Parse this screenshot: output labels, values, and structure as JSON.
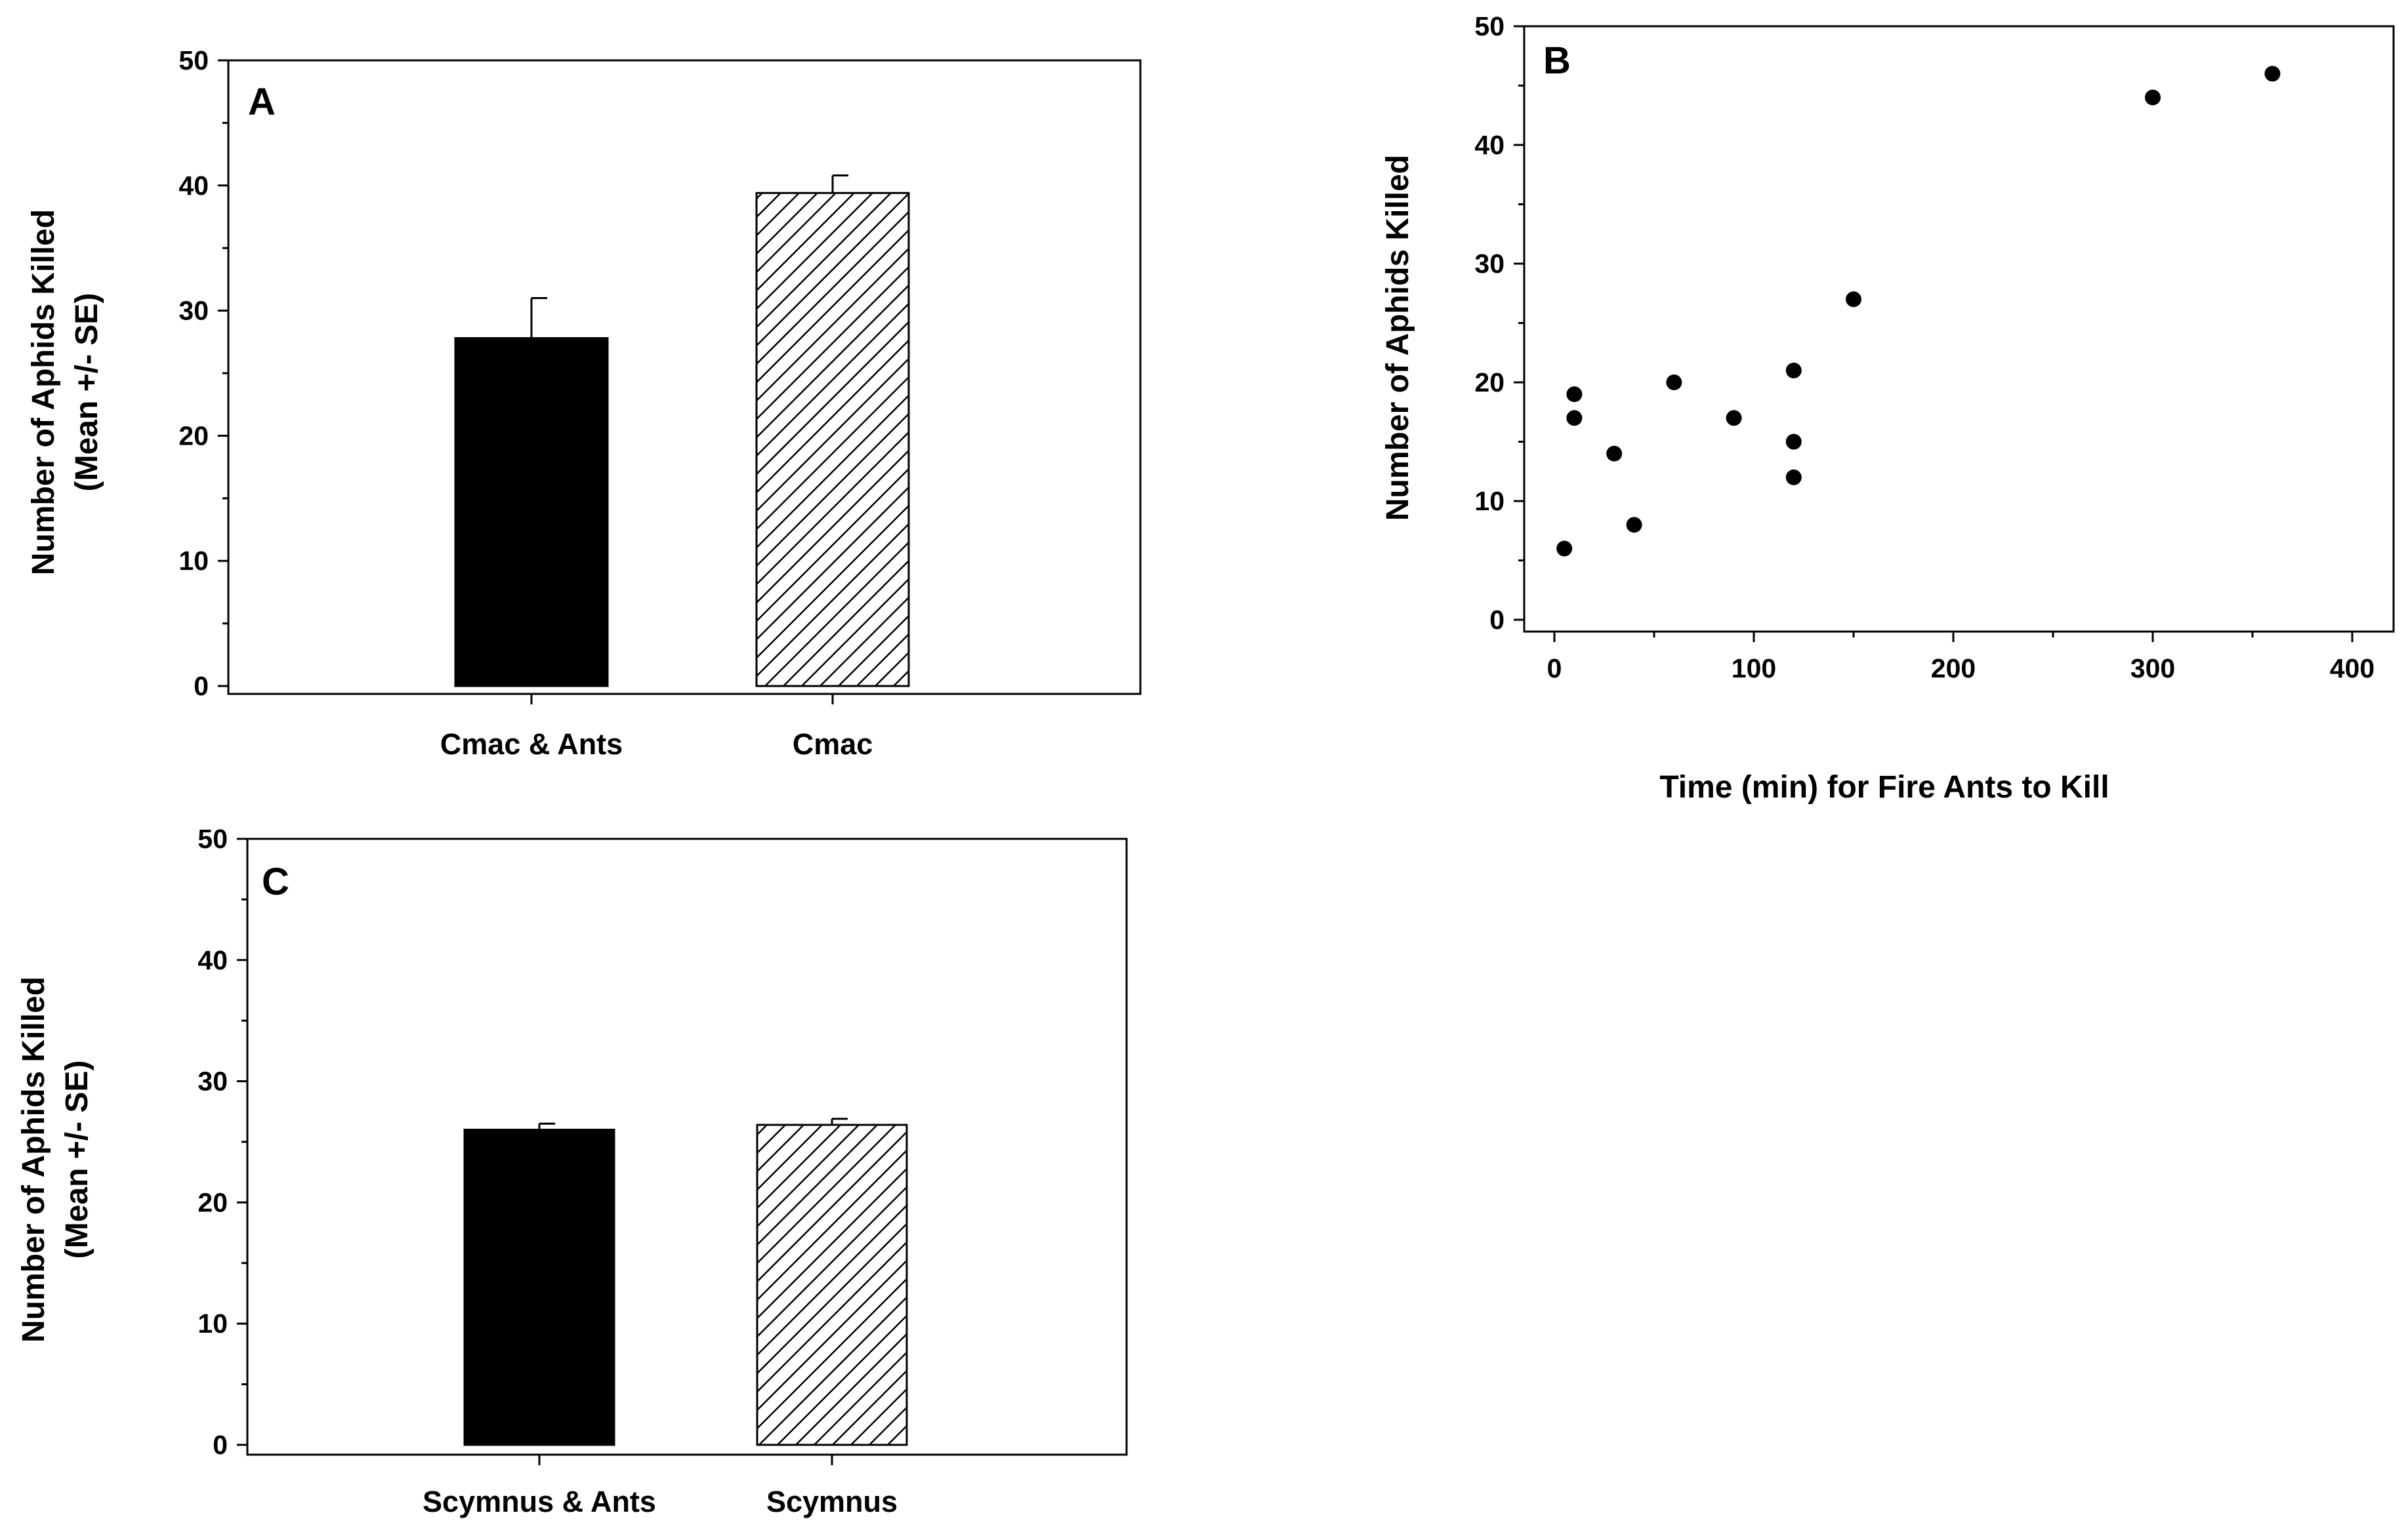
{
  "chart_data": [
    {
      "panel": "A",
      "type": "bar",
      "categories": [
        "Cmac & Ants",
        "Cmac"
      ],
      "values": [
        27.8,
        39.4
      ],
      "error": [
        3.2,
        1.4
      ],
      "fills": [
        "solid",
        "hatched"
      ],
      "colors": {
        "bar": "#000000",
        "hatch": "#000000",
        "frame": "#000000"
      },
      "title": "",
      "xlabel": "",
      "ylabel": [
        "Number of Aphids Killed",
        "(Mean +/- SE)"
      ],
      "ylim": [
        0,
        50
      ],
      "yticks": [
        0,
        10,
        20,
        30,
        40,
        50
      ],
      "grid": false
    },
    {
      "panel": "B",
      "type": "scatter",
      "x": [
        5,
        10,
        10,
        30,
        40,
        60,
        90,
        120,
        120,
        120,
        150,
        300,
        360
      ],
      "y": [
        6,
        19,
        17,
        14,
        8,
        20,
        17,
        21,
        15,
        12,
        27,
        44,
        46
      ],
      "title": "",
      "xlabel": "Time (min) for Fire Ants to Kill",
      "ylabel": [
        "Number of Aphids Killed"
      ],
      "xlim": [
        0,
        400
      ],
      "ylim": [
        0,
        50
      ],
      "xticks": [
        0,
        100,
        200,
        300,
        400
      ],
      "yticks": [
        0,
        10,
        20,
        30,
        40,
        50
      ],
      "grid": false
    },
    {
      "panel": "C",
      "type": "bar",
      "categories": [
        "Scymnus & Ants",
        "Scymnus"
      ],
      "values": [
        26.0,
        26.4
      ],
      "error": [
        0.5,
        0.5
      ],
      "fills": [
        "solid",
        "hatched"
      ],
      "colors": {
        "bar": "#000000",
        "hatch": "#000000",
        "frame": "#000000"
      },
      "title": "",
      "xlabel": "",
      "ylabel": [
        "Number of Aphids Killed",
        "(Mean +/- SE)"
      ],
      "ylim": [
        0,
        50
      ],
      "yticks": [
        0,
        10,
        20,
        30,
        40,
        50
      ],
      "grid": false
    }
  ]
}
